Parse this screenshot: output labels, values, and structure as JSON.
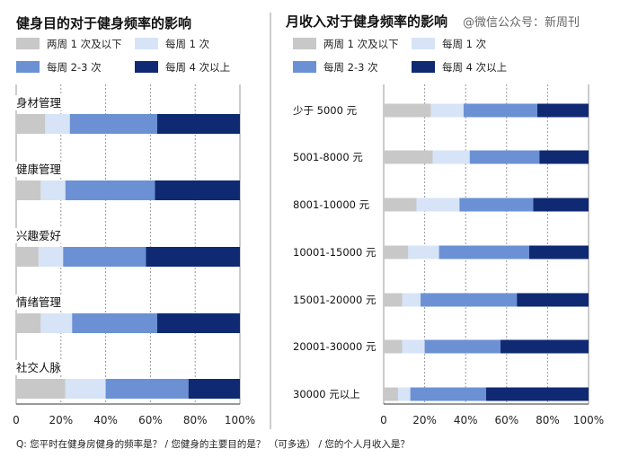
{
  "watermark": "@微信公众号：新周刊",
  "footnote": "Q: 您平时在健身房健身的频率是？ / 您健身的主要目的是？ （可多选） / 您的个人月收入是？",
  "colors": {
    "two_weeks_or_less": "#c8c8c8",
    "weekly_1": "#d7e4f7",
    "weekly_2_3": "#6b91d4",
    "weekly_4_plus": "#0f2a73"
  },
  "chart_data": [
    {
      "type": "bar",
      "orientation": "horizontal",
      "stacked": true,
      "title": "健身目的对于健身频率的影响",
      "categories": [
        "身材管理",
        "健康管理",
        "兴趣爱好",
        "情绪管理",
        "社交人脉"
      ],
      "series": [
        {
          "name": "两周 1 次及以下",
          "values": [
            13,
            11,
            10,
            11,
            22
          ]
        },
        {
          "name": "每周 1 次",
          "values": [
            11,
            11,
            11,
            14,
            18
          ]
        },
        {
          "name": "每周 2-3 次",
          "values": [
            39,
            40,
            37,
            38,
            37
          ]
        },
        {
          "name": "每周 4 次以上",
          "values": [
            37,
            38,
            42,
            37,
            23
          ]
        }
      ],
      "x_ticks": [
        "0",
        "20%",
        "40%",
        "60%",
        "80%",
        "100%"
      ],
      "xlim": [
        0,
        100
      ],
      "grid": true,
      "legend": "top"
    },
    {
      "type": "bar",
      "orientation": "horizontal",
      "stacked": true,
      "title": "月收入对于健身频率的影响",
      "categories": [
        "少于 5000 元",
        "5001-8000 元",
        "8001-10000 元",
        "10001-15000 元",
        "15001-20000 元",
        "20001-30000 元",
        "30000 元以上"
      ],
      "series": [
        {
          "name": "两周 1 次及以下",
          "values": [
            23,
            24,
            16,
            12,
            9,
            9,
            7
          ]
        },
        {
          "name": "每周 1 次",
          "values": [
            16,
            18,
            21,
            15,
            9,
            11,
            6
          ]
        },
        {
          "name": "每周 2-3 次",
          "values": [
            36,
            34,
            36,
            44,
            47,
            37,
            37
          ]
        },
        {
          "name": "每周 4 次以上",
          "values": [
            25,
            24,
            27,
            29,
            35,
            43,
            50
          ]
        }
      ],
      "x_ticks": [
        "0",
        "20%",
        "40%",
        "60%",
        "80%",
        "100%"
      ],
      "xlim": [
        0,
        100
      ],
      "grid": true,
      "legend": "top"
    }
  ]
}
